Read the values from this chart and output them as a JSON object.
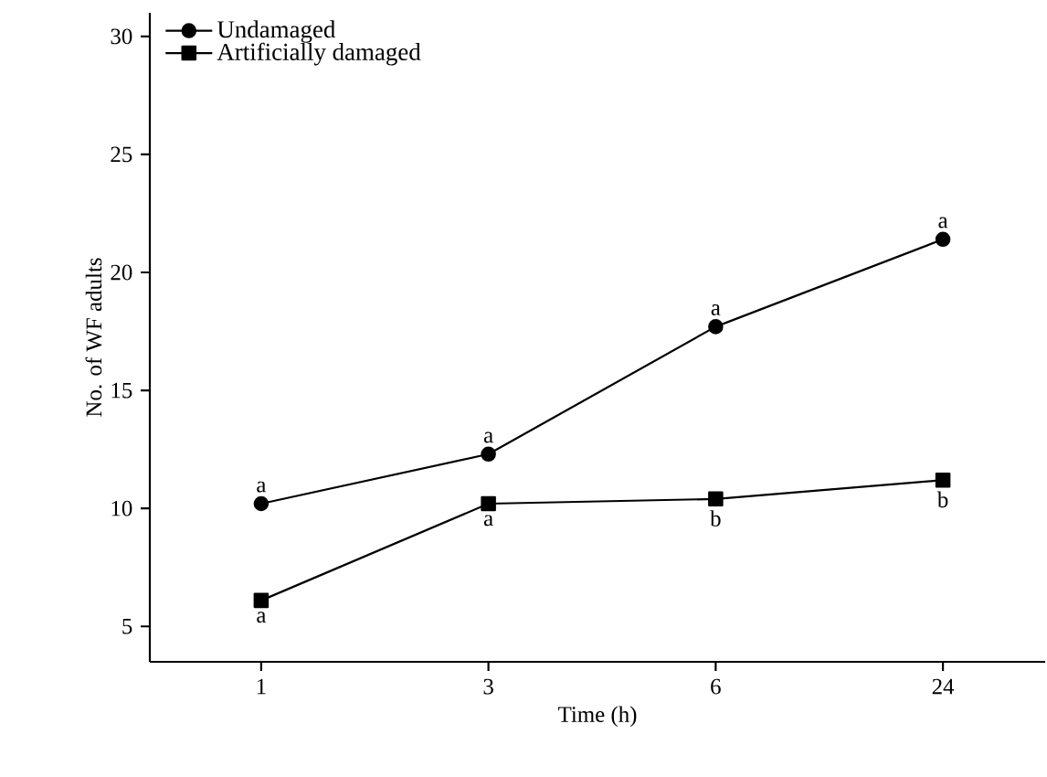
{
  "chart_data": {
    "type": "line",
    "xlabel": "Time (h)",
    "ylabel": "No. of WF adults",
    "categories": [
      "1",
      "3",
      "6",
      "24"
    ],
    "series": [
      {
        "name": "Undamaged",
        "color": "#000000",
        "marker": "circle",
        "values": [
          10.2,
          12.3,
          17.7,
          21.4
        ],
        "value_labels": [
          "a",
          "a",
          "a",
          "a"
        ]
      },
      {
        "name": "Artificially damaged",
        "color": "#000000",
        "marker": "square",
        "values": [
          6.1,
          10.2,
          10.4,
          11.2
        ],
        "value_labels": [
          "a",
          "a",
          "b",
          "b"
        ]
      }
    ],
    "ylim": [
      3.5,
      31
    ],
    "yticks": [
      5,
      10,
      15,
      20,
      25,
      30
    ],
    "grid": false,
    "legend": "top left",
    "line_style": "solid"
  }
}
